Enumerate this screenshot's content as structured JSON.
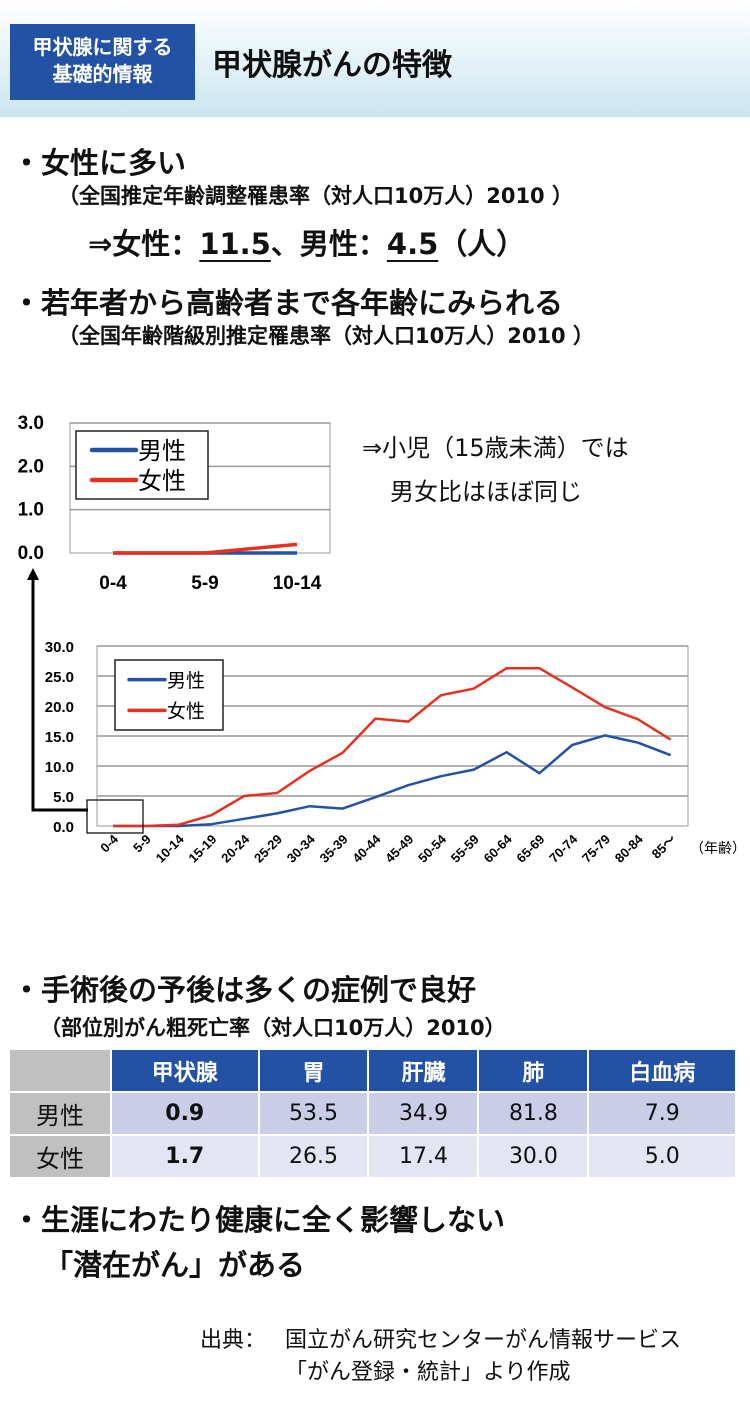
{
  "header": {
    "badge_line1": "甲状腺に関する",
    "badge_line2": "基礎的情報",
    "title": "甲状腺がんの特徴"
  },
  "section1": {
    "bullet": "・女性に多い",
    "sub": "（全国推定年齢調整罹患率（対人口10万人）2010 ）",
    "result_prefix": "⇒女性：",
    "female_value": "11.5",
    "separator": "、男性：",
    "male_value": "4.5",
    "unit": "（人）"
  },
  "section2": {
    "bullet": "・若年者から高齢者まで各年齢にみられる",
    "sub": "（全国年齢階級別推定罹患率（対人口10万人）2010 ）",
    "note_line1": "⇒小児（15歳未満）では",
    "note_line2": "男女比はほぼ同じ"
  },
  "chart_data": [
    {
      "type": "line",
      "title": "",
      "xlabel": "",
      "ylabel": "",
      "categories": [
        "0-4",
        "5-9",
        "10-14"
      ],
      "yticks": [
        "0.0",
        "1.0",
        "2.0",
        "3.0"
      ],
      "ylim": [
        0,
        3
      ],
      "grid": true,
      "legend": "top-left",
      "series": [
        {
          "name": "男性",
          "color": "#2352a5",
          "values": [
            0,
            0,
            0
          ]
        },
        {
          "name": "女性",
          "color": "#e8301e",
          "values": [
            0,
            0,
            0.2
          ]
        }
      ]
    },
    {
      "type": "line",
      "title": "",
      "xlabel": "（年齢）",
      "ylabel": "",
      "categories": [
        "0-4",
        "5-9",
        "10-14",
        "15-19",
        "20-24",
        "25-29",
        "30-34",
        "35-39",
        "40-44",
        "45-49",
        "50-54",
        "55-59",
        "60-64",
        "65-69",
        "70-74",
        "75-79",
        "80-84",
        "85～"
      ],
      "yticks": [
        "0.0",
        "5.0",
        "10.0",
        "15.0",
        "20.0",
        "25.0",
        "30.0"
      ],
      "ylim": [
        0,
        30
      ],
      "grid": true,
      "legend": "top-left",
      "series": [
        {
          "name": "男性",
          "color": "#2352a5",
          "values": [
            0,
            0,
            0,
            0.3,
            1.2,
            2.1,
            3.3,
            2.9,
            4.8,
            6.8,
            8.3,
            9.4,
            12.3,
            8.8,
            13.5,
            15.1,
            13.9,
            11.8
          ]
        },
        {
          "name": "女性",
          "color": "#e8301e",
          "values": [
            0,
            0,
            0.2,
            1.8,
            5.0,
            5.5,
            9.2,
            12.2,
            17.9,
            17.4,
            21.8,
            22.9,
            26.3,
            26.3,
            23.1,
            19.8,
            17.8,
            14.4
          ]
        }
      ]
    }
  ],
  "section3": {
    "bullet": "・手術後の予後は多くの症例で良好",
    "sub": "（部位別がん粗死亡率（対人口10万人）2010）",
    "table": {
      "headers": [
        "甲状腺",
        "胃",
        "肝臓",
        "肺",
        "白血病"
      ],
      "rows": [
        {
          "label": "男性",
          "values": [
            "0.9",
            "53.5",
            "34.9",
            "81.8",
            "7.9"
          ]
        },
        {
          "label": "女性",
          "values": [
            "1.7",
            "26.5",
            "17.4",
            "30.0",
            "5.0"
          ]
        }
      ]
    }
  },
  "section4": {
    "line1": "・生涯にわたり健康に全く影響しない",
    "line2": "「潜在がん」がある"
  },
  "source": {
    "label": "出典：",
    "line1": "国立がん研究センターがん情報サービス",
    "line2": "「がん登録・統計」より作成"
  }
}
